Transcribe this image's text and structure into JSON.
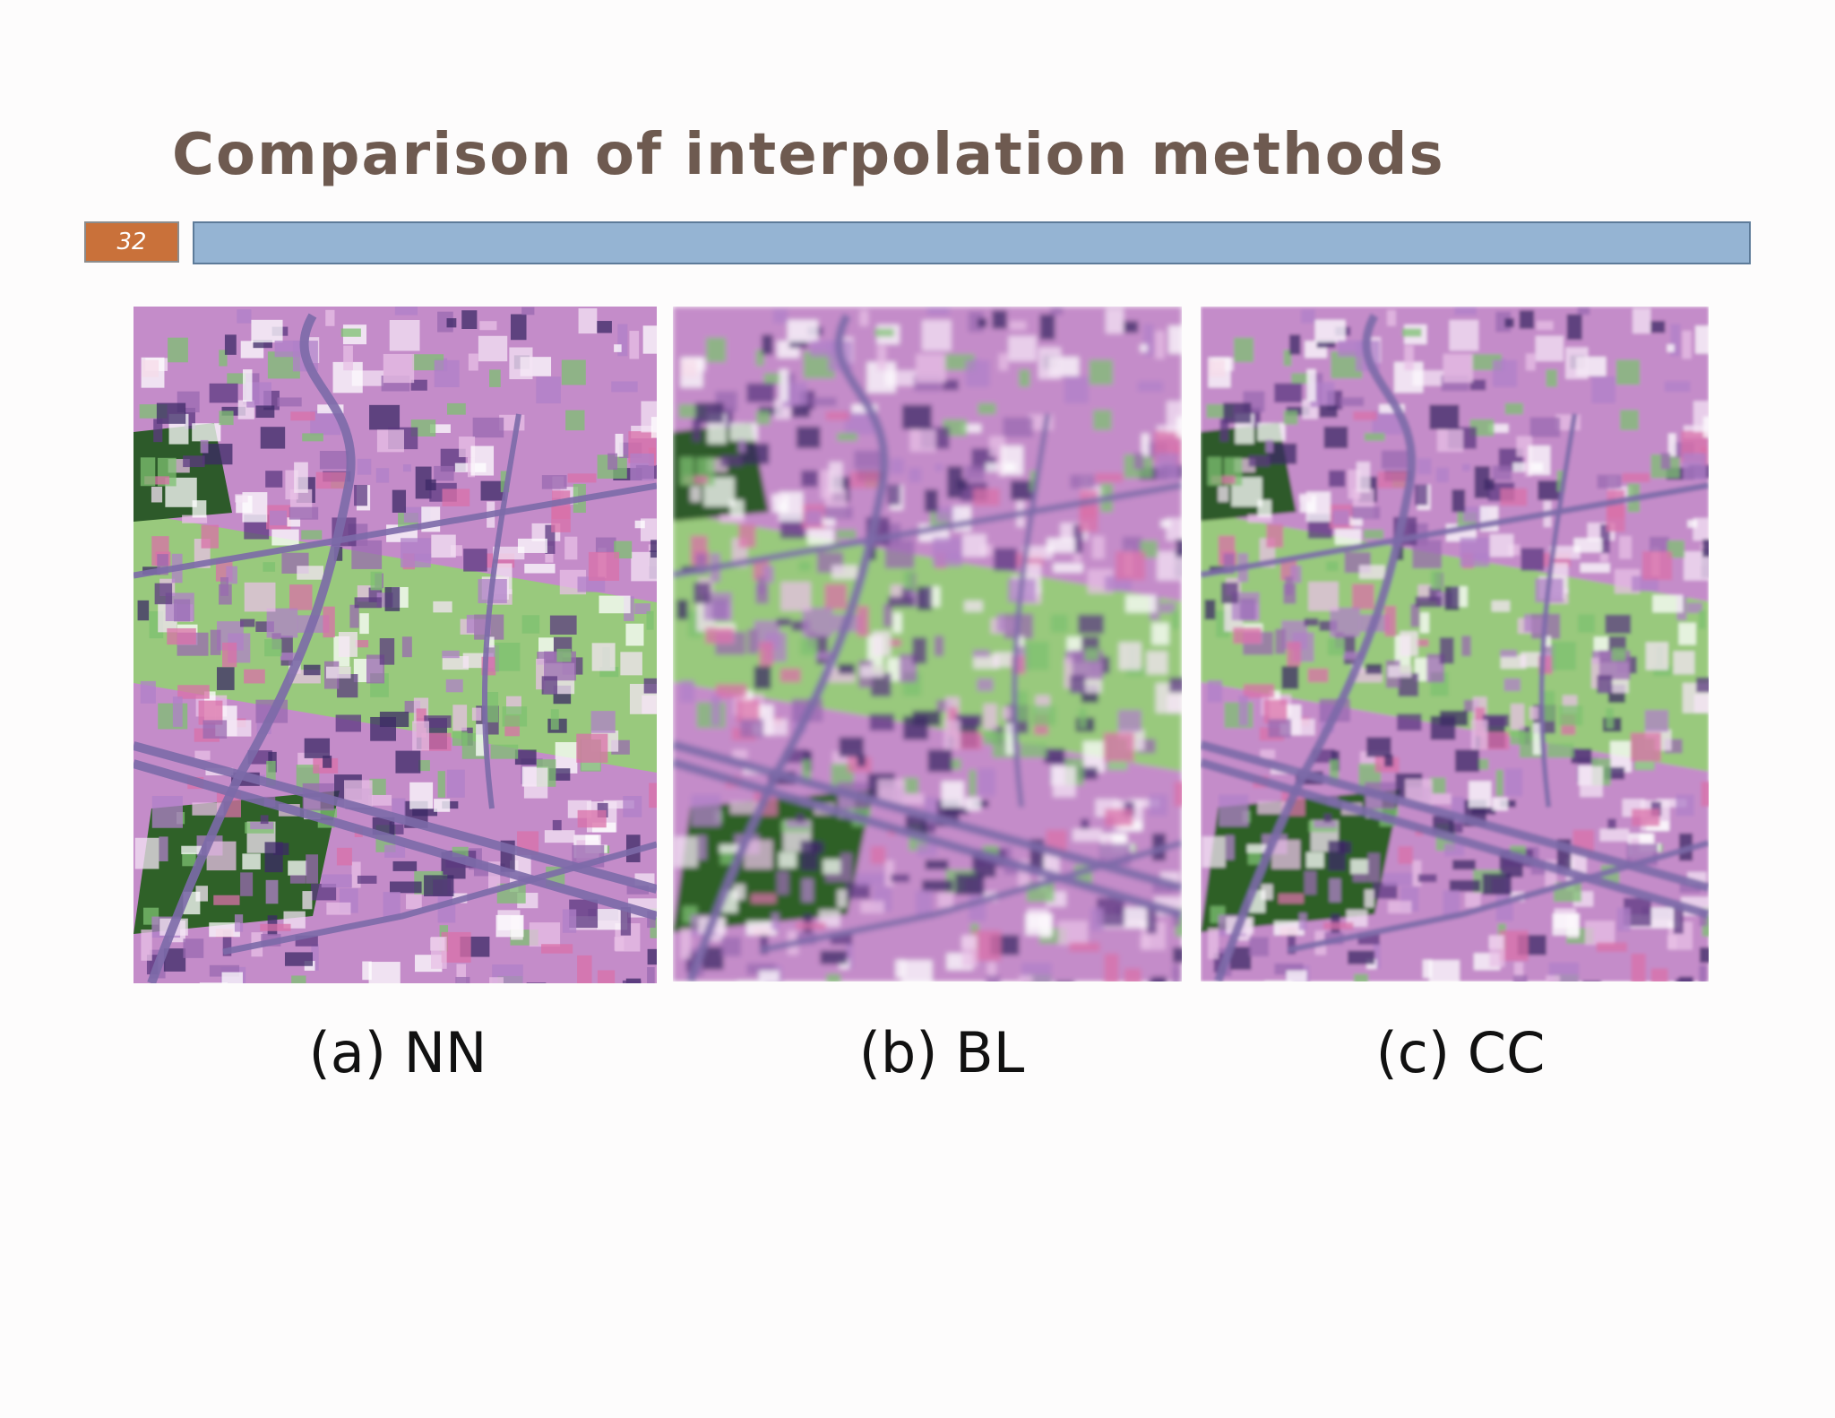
{
  "header": {
    "title": "Comparison of interpolation methods",
    "page_number": "32"
  },
  "figures": [
    {
      "caption": "(a) NN"
    },
    {
      "caption": "(b) BL"
    },
    {
      "caption": "(c) CC"
    }
  ]
}
